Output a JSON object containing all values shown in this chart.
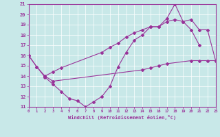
{
  "xlabel": "Windchill (Refroidissement éolien,°C)",
  "bg_color": "#c8e8e8",
  "line_color": "#993399",
  "xlim_min": 0,
  "xlim_max": 23,
  "ylim_min": 11,
  "ylim_max": 21,
  "line1_x": [
    0,
    1,
    2,
    3,
    4,
    5,
    6,
    7,
    8,
    9,
    10,
    11,
    12,
    13,
    14,
    15,
    16,
    17,
    18,
    19,
    20,
    21
  ],
  "line1_y": [
    16.0,
    14.9,
    13.9,
    13.2,
    12.5,
    11.8,
    11.6,
    11.0,
    11.5,
    12.0,
    13.0,
    14.9,
    16.3,
    17.5,
    18.0,
    18.8,
    18.8,
    19.6,
    21.0,
    19.3,
    18.5,
    17.0
  ],
  "line2_x": [
    0,
    1,
    2,
    3,
    14,
    15,
    16,
    17,
    20,
    21,
    22,
    23
  ],
  "line2_y": [
    16.0,
    14.9,
    14.0,
    13.5,
    14.6,
    14.8,
    15.0,
    15.2,
    15.5,
    15.5,
    15.5,
    15.5
  ],
  "line3_x": [
    2,
    3,
    4,
    9,
    10,
    11,
    12,
    13,
    14,
    15,
    16,
    17,
    18,
    19,
    20,
    21,
    22,
    23
  ],
  "line3_y": [
    14.0,
    14.4,
    14.8,
    16.3,
    16.8,
    17.2,
    17.8,
    18.2,
    18.5,
    18.8,
    18.8,
    19.3,
    19.5,
    19.3,
    19.5,
    18.5,
    18.5,
    15.5
  ]
}
